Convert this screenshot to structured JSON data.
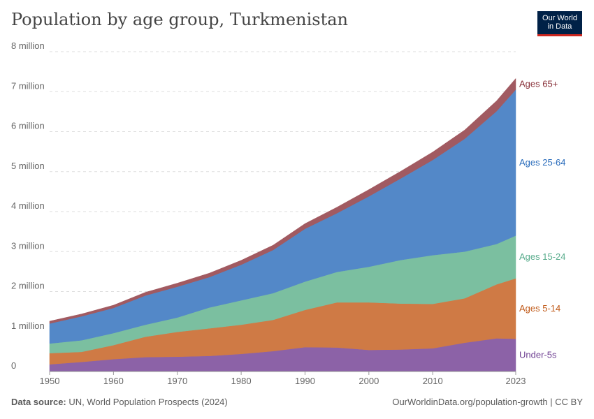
{
  "header": {
    "title": "Population by age group, Turkmenistan",
    "logo_line1": "Our World",
    "logo_line2": "in Data"
  },
  "footer": {
    "source_label": "Data source:",
    "source_text": "UN, World Population Prospects (2024)",
    "link": "OurWorldinData.org/population-growth | CC BY"
  },
  "chart_data": {
    "type": "area",
    "stacked": true,
    "title": "Population by age group, Turkmenistan",
    "xlabel": "",
    "ylabel": "",
    "xlim": [
      1950,
      2023
    ],
    "ylim": [
      0,
      8000000
    ],
    "grid": "horizontal dashed",
    "legend": "direct labels at right end of areas",
    "x": [
      1950,
      1955,
      1960,
      1965,
      1970,
      1975,
      1980,
      1985,
      1990,
      1995,
      2000,
      2005,
      2010,
      2015,
      2020,
      2023
    ],
    "x_ticks": [
      1950,
      1960,
      1970,
      1980,
      1990,
      2000,
      2010,
      2023
    ],
    "y_ticks": [
      0,
      1000000,
      2000000,
      3000000,
      4000000,
      5000000,
      6000000,
      7000000,
      8000000
    ],
    "y_tick_labels": [
      "0",
      "1 million",
      "2 million",
      "3 million",
      "4 million",
      "5 million",
      "6 million",
      "7 million",
      "8 million"
    ],
    "series": [
      {
        "name": "Under-5s",
        "color": "#8c62a7",
        "label_color": "#6d3e91",
        "values": [
          180000,
          240000,
          310000,
          360000,
          370000,
          390000,
          440000,
          510000,
          610000,
          600000,
          540000,
          550000,
          580000,
          720000,
          830000,
          820000
        ]
      },
      {
        "name": "Ages 5-14",
        "color": "#cf7a45",
        "label_color": "#c05917",
        "values": [
          280000,
          250000,
          350000,
          510000,
          620000,
          690000,
          730000,
          780000,
          930000,
          1130000,
          1190000,
          1150000,
          1110000,
          1110000,
          1350000,
          1510000
        ]
      },
      {
        "name": "Ages 15-24",
        "color": "#7bbfa0",
        "label_color": "#58ac8c",
        "values": [
          240000,
          290000,
          300000,
          300000,
          360000,
          520000,
          610000,
          670000,
          710000,
          760000,
          890000,
          1090000,
          1220000,
          1170000,
          1010000,
          1070000
        ]
      },
      {
        "name": "Ages 25-64",
        "color": "#5388c8",
        "label_color": "#286bbb",
        "values": [
          500000,
          600000,
          630000,
          730000,
          770000,
          760000,
          890000,
          1080000,
          1320000,
          1470000,
          1760000,
          2040000,
          2380000,
          2820000,
          3320000,
          3650000
        ]
      },
      {
        "name": "Ages 65+",
        "color": "#a15a61",
        "label_color": "#883039",
        "values": [
          60000,
          60000,
          70000,
          80000,
          90000,
          100000,
          110000,
          120000,
          130000,
          150000,
          170000,
          180000,
          200000,
          220000,
          260000,
          280000
        ]
      }
    ]
  }
}
